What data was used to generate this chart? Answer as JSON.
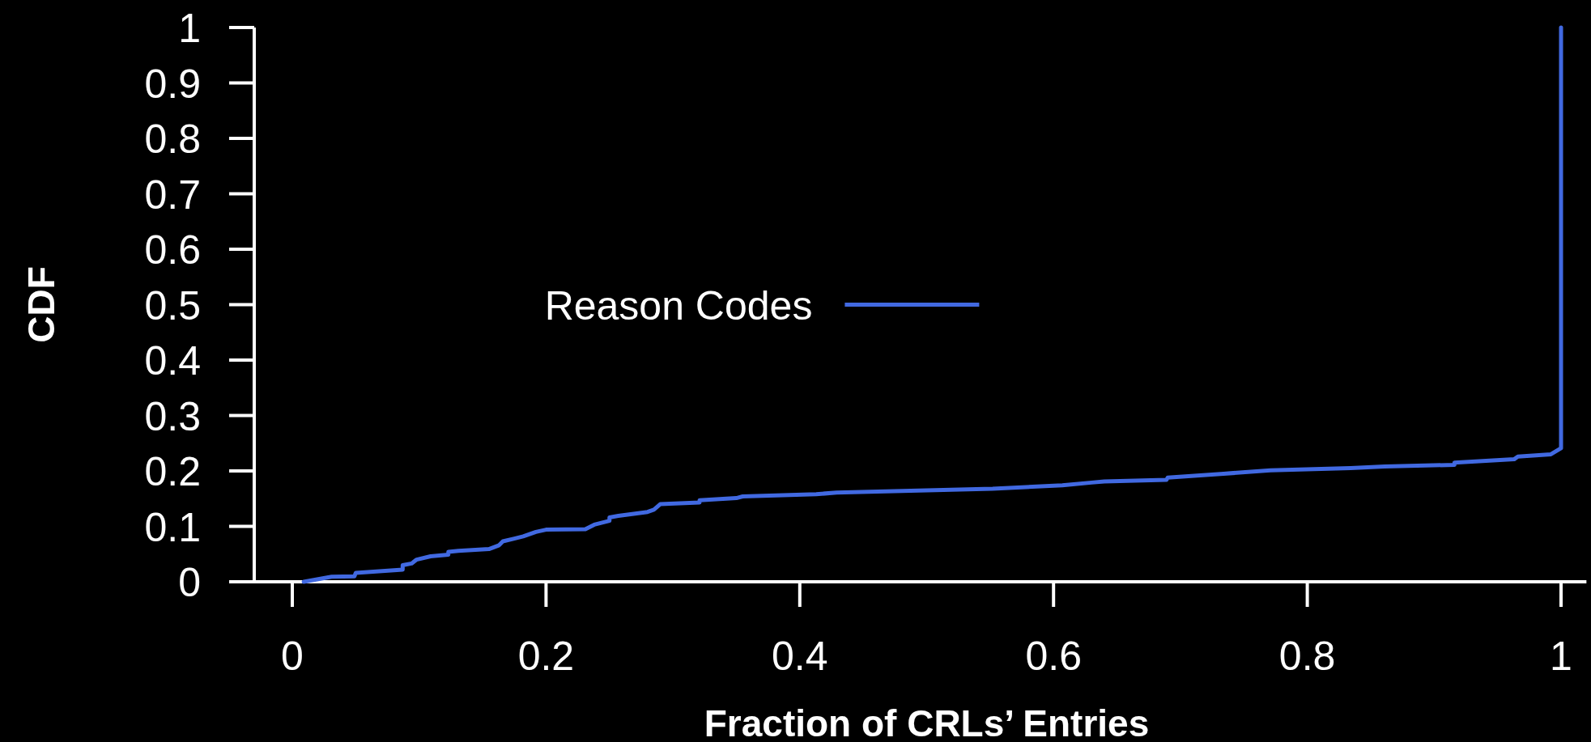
{
  "chart_data": {
    "type": "line",
    "xlabel": "Fraction of CRLs’ Entries",
    "ylabel": "CDF",
    "x": [
      0.009,
      0.031,
      0.049,
      0.05,
      0.087,
      0.087,
      0.094,
      0.098,
      0.109,
      0.123,
      0.123,
      0.131,
      0.155,
      0.163,
      0.166,
      0.175,
      0.182,
      0.192,
      0.2,
      0.231,
      0.238,
      0.25,
      0.25,
      0.257,
      0.28,
      0.285,
      0.29,
      0.321,
      0.321,
      0.35,
      0.355,
      0.413,
      0.429,
      0.552,
      0.607,
      0.63,
      0.64,
      0.689,
      0.69,
      0.734,
      0.771,
      0.834,
      0.861,
      0.916,
      0.916,
      0.963,
      0.966,
      0.992,
      1.0,
      1.0
    ],
    "series": [
      {
        "name": "Reason Codes",
        "color": "#4169e1",
        "values": [
          0,
          0.009,
          0.01,
          0.016,
          0.022,
          0.03,
          0.033,
          0.04,
          0.046,
          0.049,
          0.054,
          0.056,
          0.059,
          0.066,
          0.073,
          0.078,
          0.082,
          0.09,
          0.094,
          0.095,
          0.103,
          0.11,
          0.116,
          0.119,
          0.126,
          0.13,
          0.14,
          0.143,
          0.147,
          0.151,
          0.154,
          0.158,
          0.161,
          0.168,
          0.174,
          0.179,
          0.181,
          0.184,
          0.188,
          0.195,
          0.201,
          0.205,
          0.208,
          0.211,
          0.215,
          0.221,
          0.226,
          0.23,
          0.241,
          1.0
        ]
      }
    ],
    "xlim": [
      -0.03,
      1.02
    ],
    "ylim": [
      0,
      1
    ],
    "xticks": [
      0,
      0.2,
      0.4,
      0.6,
      0.8,
      1
    ],
    "yticks": [
      0,
      0.1,
      0.2,
      0.3,
      0.4,
      0.5,
      0.6,
      0.7,
      0.8,
      0.9,
      1
    ],
    "legend": "left"
  }
}
